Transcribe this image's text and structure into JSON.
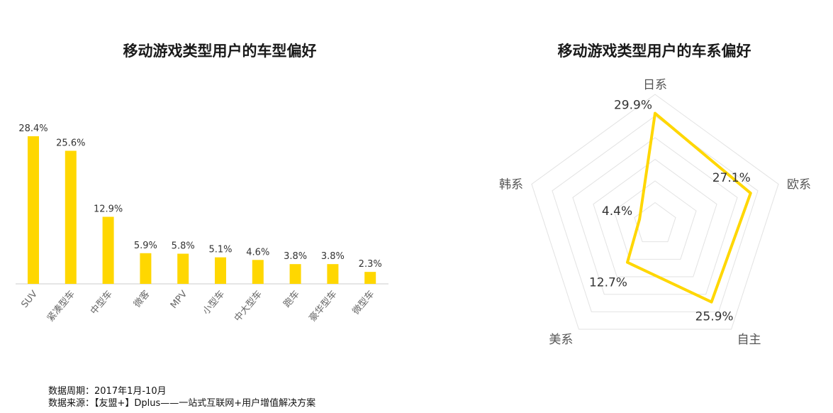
{
  "footer": {
    "period": "数据周期：2017年1月-10月",
    "source": "数据来源：【友盟+】Dplus——一站式互联网+用户增值解决方案"
  },
  "colors": {
    "accent": "#FFD700",
    "grid": "#e2e2e2",
    "axis": "#cccccc"
  },
  "chart_data": [
    {
      "type": "bar",
      "title": "移动游戏类型用户的车型偏好",
      "categories": [
        "SUV",
        "紧凑型车",
        "中型车",
        "微客",
        "MPV",
        "小型车",
        "中大型车",
        "跑车",
        "豪华型车",
        "微型车"
      ],
      "values": [
        28.4,
        25.6,
        12.9,
        5.9,
        5.8,
        5.1,
        4.6,
        3.8,
        3.8,
        2.3
      ],
      "value_labels": [
        "28.4%",
        "25.6%",
        "12.9%",
        "5.9%",
        "5.8%",
        "5.1%",
        "4.6%",
        "3.8%",
        "3.8%",
        "2.3%"
      ],
      "unit": "%",
      "ylim": [
        0,
        28.4
      ],
      "grid": false,
      "legend": "none"
    },
    {
      "type": "radar",
      "title": "移动游戏类型用户的车系偏好",
      "axes": [
        "日系",
        "欧系",
        "自主",
        "美系",
        "韩系"
      ],
      "values": [
        29.9,
        27.1,
        25.9,
        12.7,
        4.4
      ],
      "value_labels": [
        "29.9%",
        "27.1%",
        "25.9%",
        "12.7%",
        "4.4%"
      ],
      "unit": "%",
      "range": [
        0,
        35
      ],
      "rings": 6,
      "grid": true,
      "legend": "none"
    }
  ]
}
